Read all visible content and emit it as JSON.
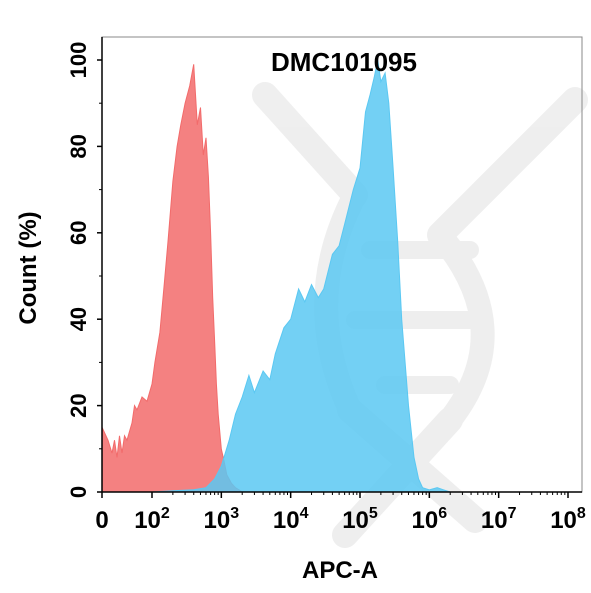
{
  "chart_data": {
    "type": "area",
    "title": "DMC101095",
    "xlabel": "APC-A",
    "ylabel": "Count  (%)",
    "x_scale": "log",
    "xlim": [
      0,
      100000000
    ],
    "ylim": [
      0,
      100
    ],
    "x_ticks": [
      {
        "value": 0,
        "base": "0",
        "exp": ""
      },
      {
        "value": 100,
        "base": "10",
        "exp": "2"
      },
      {
        "value": 1000,
        "base": "10",
        "exp": "3"
      },
      {
        "value": 10000,
        "base": "10",
        "exp": "4"
      },
      {
        "value": 100000,
        "base": "10",
        "exp": "5"
      },
      {
        "value": 1000000,
        "base": "10",
        "exp": "6"
      },
      {
        "value": 10000000,
        "base": "10",
        "exp": "7"
      },
      {
        "value": 100000000,
        "base": "10",
        "exp": "8"
      }
    ],
    "y_ticks": [
      "0",
      "20",
      "40",
      "60",
      "80",
      "100"
    ],
    "grid": false,
    "legend": "none",
    "watermark": "dna-helix-logo",
    "series": [
      {
        "color": "#f26b6b",
        "x": [
          0,
          12,
          20,
          25,
          30,
          35,
          40,
          45,
          50,
          55,
          60,
          65,
          70,
          80,
          90,
          100,
          110,
          130,
          150,
          170,
          200,
          230,
          260,
          300,
          350,
          400,
          450,
          500,
          550,
          600,
          650,
          700,
          750,
          800,
          850,
          900,
          1000,
          1100,
          1200,
          1400,
          1600,
          1800,
          2000
        ],
        "y": [
          15,
          12,
          9,
          12,
          8,
          13,
          9,
          13,
          12,
          14,
          16,
          20,
          19,
          22,
          21,
          25,
          30,
          37,
          48,
          58,
          72,
          80,
          85,
          90,
          94,
          99,
          85,
          89,
          78,
          82,
          73,
          60,
          45,
          35,
          25,
          18,
          10,
          7,
          4,
          2,
          1,
          0.5,
          0
        ]
      },
      {
        "color": "#5bc8f2",
        "x": [
          0,
          100,
          200,
          400,
          600,
          800,
          1000,
          1300,
          1600,
          2000,
          2500,
          3000,
          4000,
          5000,
          6000,
          8000,
          10000,
          13000,
          16000,
          20000,
          25000,
          30000,
          40000,
          50000,
          60000,
          80000,
          100000,
          120000,
          140000,
          160000,
          180000,
          200000,
          230000,
          260000,
          300000,
          350000,
          400000,
          500000,
          600000,
          700000,
          800000,
          1000000,
          1300000,
          1600000,
          2000000
        ],
        "y": [
          0,
          0,
          0.3,
          0.5,
          1,
          3,
          6,
          12,
          18,
          22,
          27,
          23,
          28,
          26,
          32,
          38,
          40,
          47,
          44,
          48,
          45,
          47,
          55,
          57,
          62,
          70,
          75,
          88,
          92,
          96,
          100,
          95,
          97,
          90,
          75,
          58,
          40,
          20,
          8,
          3,
          1,
          0.5,
          1,
          0.5,
          0
        ]
      }
    ]
  }
}
